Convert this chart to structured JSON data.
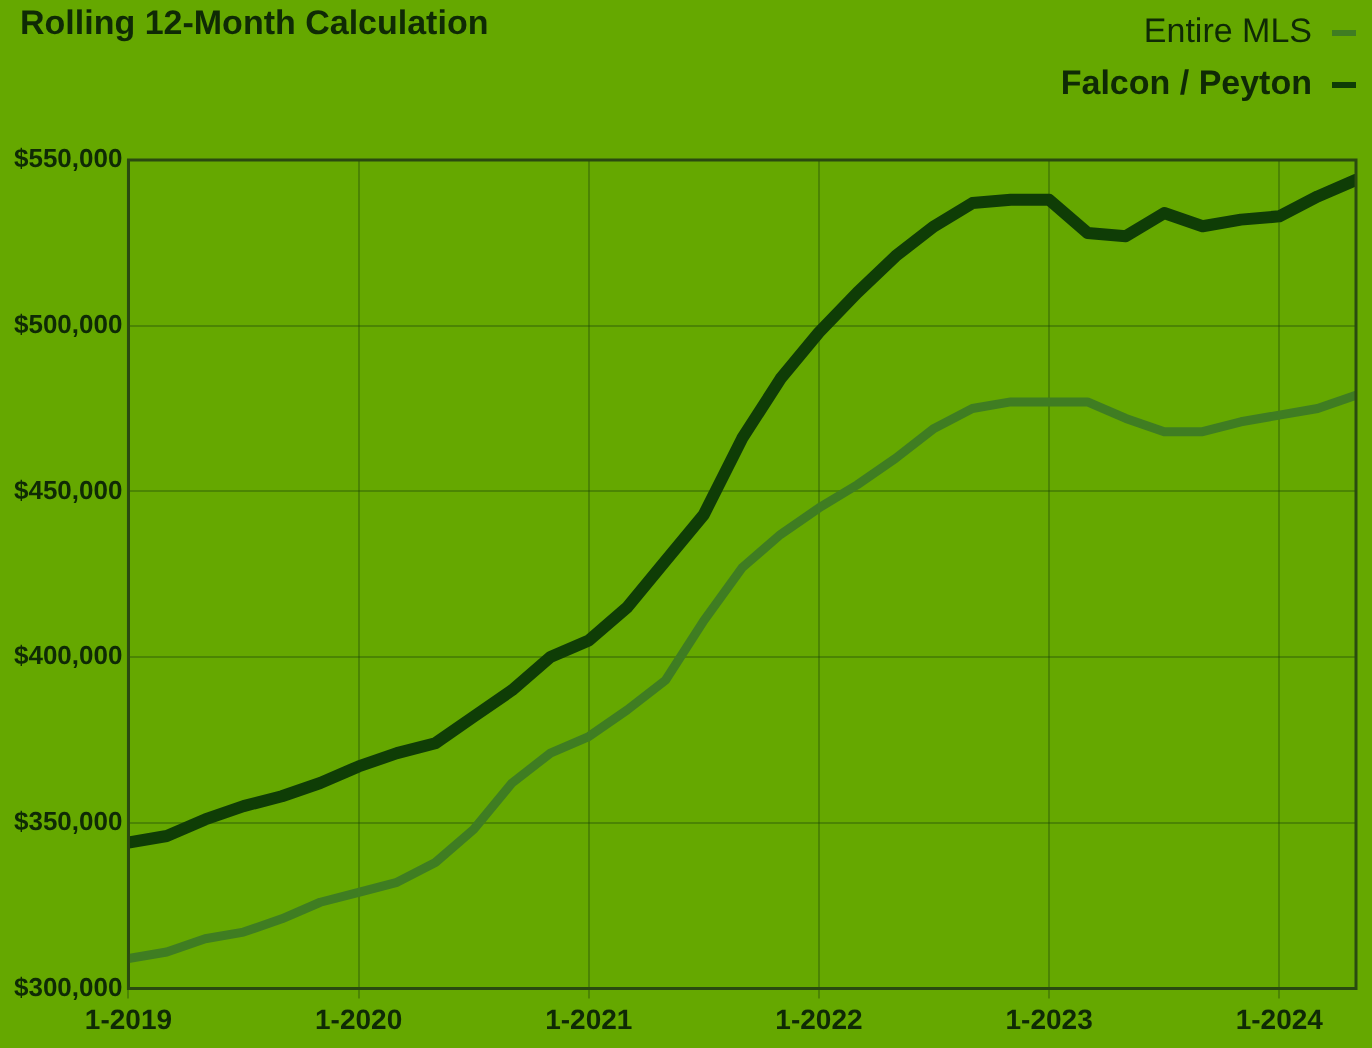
{
  "chart_data": {
    "type": "line",
    "title": "Rolling 12-Month Calculation",
    "x": [
      "2019-01",
      "2019-03",
      "2019-05",
      "2019-07",
      "2019-09",
      "2019-11",
      "2020-01",
      "2020-03",
      "2020-05",
      "2020-07",
      "2020-09",
      "2020-11",
      "2021-01",
      "2021-03",
      "2021-05",
      "2021-07",
      "2021-09",
      "2021-11",
      "2022-01",
      "2022-03",
      "2022-05",
      "2022-07",
      "2022-09",
      "2022-11",
      "2023-01",
      "2023-03",
      "2023-05",
      "2023-07",
      "2023-09",
      "2023-11",
      "2024-01",
      "2024-03",
      "2024-05"
    ],
    "series": [
      {
        "name": "Entire MLS",
        "color": "#3f7d22",
        "values": [
          309000,
          311000,
          315000,
          317000,
          321000,
          326000,
          329000,
          332000,
          338000,
          348000,
          362000,
          371000,
          376000,
          384000,
          393000,
          411000,
          427000,
          437000,
          445000,
          452000,
          460000,
          469000,
          475000,
          477000,
          477000,
          477000,
          472000,
          468000,
          468000,
          471000,
          473000,
          475000,
          479000
        ]
      },
      {
        "name": "Falcon / Peyton",
        "color": "#0f3d06",
        "values": [
          344000,
          346000,
          351000,
          355000,
          358000,
          362000,
          367000,
          371000,
          374000,
          382000,
          390000,
          400000,
          405000,
          415000,
          429000,
          443000,
          466000,
          484000,
          498000,
          510000,
          521000,
          530000,
          537000,
          538000,
          538000,
          528000,
          527000,
          534000,
          530000,
          532000,
          533000,
          539000,
          544000
        ]
      }
    ],
    "xlim": [
      "2019-01",
      "2024-05"
    ],
    "xticks": [
      {
        "value": "2019-01",
        "label": "1-2019"
      },
      {
        "value": "2020-01",
        "label": "1-2020"
      },
      {
        "value": "2021-01",
        "label": "1-2021"
      },
      {
        "value": "2022-01",
        "label": "1-2022"
      },
      {
        "value": "2023-01",
        "label": "1-2023"
      },
      {
        "value": "2024-01",
        "label": "1-2024"
      }
    ],
    "ylim": [
      300000,
      550000
    ],
    "yticks": [
      {
        "value": 300000,
        "label": "$300,000"
      },
      {
        "value": 350000,
        "label": "$350,000"
      },
      {
        "value": 400000,
        "label": "$400,000"
      },
      {
        "value": 450000,
        "label": "$450,000"
      },
      {
        "value": 500000,
        "label": "$500,000"
      },
      {
        "value": 550000,
        "label": "$550,000"
      }
    ],
    "grid": true,
    "legend": "top right",
    "marker": "none",
    "line_style": "solid"
  }
}
